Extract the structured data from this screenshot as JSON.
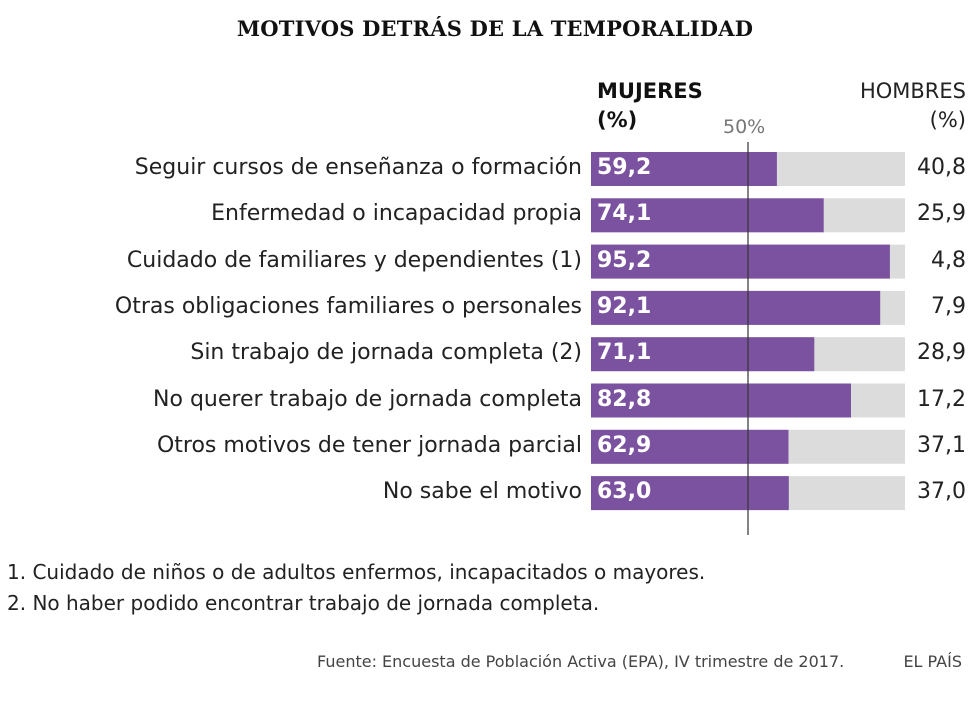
{
  "chart_data": {
    "type": "bar",
    "title": "MOTIVOS DETRÁS DE LA TEMPORALIDAD",
    "columns": {
      "women": [
        "MUJERES",
        "(%)"
      ],
      "men": [
        "HOMBRES",
        "(%)"
      ]
    },
    "reference_label": "50%",
    "reference_value": 50,
    "xlim": [
      0,
      100
    ],
    "categories": [
      "Seguir cursos de enseñanza o formación",
      "Enfermedad o incapacidad propia",
      "Cuidado de familiares y dependientes (1)",
      "Otras obligaciones familiares o personales",
      "Sin trabajo de jornada completa (2)",
      "No querer trabajo de jornada completa",
      "Otros motivos de tener jornada parcial",
      "No sabe el motivo"
    ],
    "series": [
      {
        "name": "Mujeres",
        "values": [
          59.2,
          74.1,
          95.2,
          92.1,
          71.1,
          82.8,
          62.9,
          63.0
        ],
        "labels": [
          "59,2",
          "74,1",
          "95,2",
          "92,1",
          "71,1",
          "82,8",
          "62,9",
          "63,0"
        ]
      },
      {
        "name": "Hombres",
        "values": [
          40.8,
          25.9,
          4.8,
          7.9,
          28.9,
          17.2,
          37.1,
          37.0
        ],
        "labels": [
          "40,8",
          "25,9",
          "4,8",
          "7,9",
          "28,9",
          "17,2",
          "37,1",
          "37,0"
        ]
      }
    ],
    "colors": {
      "women": "#7b52a0",
      "men": "#dcdcdc",
      "reference_line": "#333333"
    }
  },
  "notes": [
    "1. Cuidado de niños o de adultos enfermos, incapacitados o mayores.",
    "2. No haber podido encontrar trabajo de jornada completa."
  ],
  "source": "Fuente: Encuesta de Población Activa (EPA), IV trimestre de 2017.",
  "brand": "EL PAÍS"
}
